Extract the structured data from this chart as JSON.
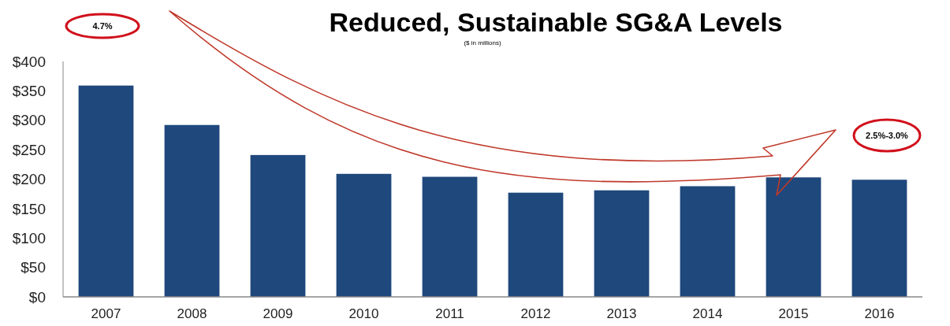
{
  "chart_data": {
    "type": "bar",
    "title": "Reduced, Sustainable SG&A Levels",
    "subtitle": "($ in millions)",
    "categories": [
      "2007",
      "2008",
      "2009",
      "2010",
      "2011",
      "2012",
      "2013",
      "2014",
      "2015",
      "2016"
    ],
    "values": [
      359,
      292,
      241,
      209,
      204,
      177,
      181,
      188,
      203,
      199
    ],
    "color": "#1f487c",
    "ylim": [
      0,
      400
    ],
    "yticks": [
      {
        "value": 0,
        "label": "$0"
      },
      {
        "value": 50,
        "label": "$50"
      },
      {
        "value": 100,
        "label": "$100"
      },
      {
        "value": 150,
        "label": "$150"
      },
      {
        "value": 200,
        "label": "$200"
      },
      {
        "value": 250,
        "label": "$250"
      },
      {
        "value": 300,
        "label": "$300"
      },
      {
        "value": 350,
        "label": "$350"
      },
      {
        "value": 400,
        "label": "$400"
      }
    ],
    "grid": false,
    "annotations": [
      "4.7%",
      "2.5%-3.0%"
    ]
  }
}
